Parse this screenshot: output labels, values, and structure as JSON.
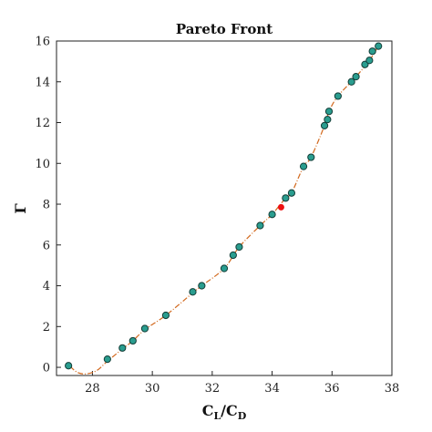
{
  "chart_data": {
    "type": "scatter",
    "title": "Pareto Front",
    "xlabel": {
      "main": "C",
      "sub1": "L",
      "sep": "/C",
      "sub2": "D"
    },
    "ylabel": "Γ",
    "xlim": [
      26.8,
      38
    ],
    "ylim": [
      -0.4,
      16
    ],
    "xticks": [
      28,
      30,
      32,
      34,
      36,
      38
    ],
    "yticks": [
      0,
      2,
      4,
      6,
      8,
      10,
      12,
      14,
      16
    ],
    "grid": false,
    "colors": {
      "point_fill": "#2a9d8f",
      "point_edge": "#123c36",
      "highlight": "#ee1111",
      "curve": "#d2691e"
    },
    "points": [
      {
        "x": 27.2,
        "y": 0.08
      },
      {
        "x": 28.5,
        "y": 0.4
      },
      {
        "x": 29.0,
        "y": 0.95
      },
      {
        "x": 29.35,
        "y": 1.3
      },
      {
        "x": 29.75,
        "y": 1.9
      },
      {
        "x": 30.45,
        "y": 2.55
      },
      {
        "x": 31.35,
        "y": 3.7
      },
      {
        "x": 31.65,
        "y": 4.0
      },
      {
        "x": 32.4,
        "y": 4.85
      },
      {
        "x": 32.7,
        "y": 5.5
      },
      {
        "x": 32.9,
        "y": 5.9
      },
      {
        "x": 33.6,
        "y": 6.95
      },
      {
        "x": 34.0,
        "y": 7.5
      },
      {
        "x": 34.45,
        "y": 8.3
      },
      {
        "x": 34.65,
        "y": 8.55
      },
      {
        "x": 35.05,
        "y": 9.85
      },
      {
        "x": 35.3,
        "y": 10.3
      },
      {
        "x": 35.75,
        "y": 11.85
      },
      {
        "x": 35.85,
        "y": 12.15
      },
      {
        "x": 35.9,
        "y": 12.55
      },
      {
        "x": 36.2,
        "y": 13.3
      },
      {
        "x": 36.65,
        "y": 14.0
      },
      {
        "x": 36.8,
        "y": 14.25
      },
      {
        "x": 37.1,
        "y": 14.85
      },
      {
        "x": 37.25,
        "y": 15.05
      },
      {
        "x": 37.35,
        "y": 15.5
      },
      {
        "x": 37.55,
        "y": 15.75
      }
    ],
    "highlight_point": {
      "x": 34.3,
      "y": 7.85
    },
    "fit_curve": [
      {
        "x": 27.25,
        "y": 0.05
      },
      {
        "x": 27.5,
        "y": -0.25
      },
      {
        "x": 27.8,
        "y": -0.32
      },
      {
        "x": 28.15,
        "y": -0.15
      },
      {
        "x": 28.5,
        "y": 0.3
      },
      {
        "x": 29.0,
        "y": 0.9
      },
      {
        "x": 29.35,
        "y": 1.3
      },
      {
        "x": 29.75,
        "y": 1.85
      },
      {
        "x": 30.45,
        "y": 2.55
      },
      {
        "x": 31.35,
        "y": 3.65
      },
      {
        "x": 31.65,
        "y": 4.0
      },
      {
        "x": 32.4,
        "y": 4.85
      },
      {
        "x": 32.9,
        "y": 5.9
      },
      {
        "x": 33.6,
        "y": 6.95
      },
      {
        "x": 34.0,
        "y": 7.5
      },
      {
        "x": 34.45,
        "y": 8.3
      },
      {
        "x": 34.65,
        "y": 8.55
      },
      {
        "x": 35.05,
        "y": 9.85
      },
      {
        "x": 35.3,
        "y": 10.3
      },
      {
        "x": 35.75,
        "y": 11.85
      },
      {
        "x": 35.9,
        "y": 12.55
      },
      {
        "x": 36.2,
        "y": 13.3
      },
      {
        "x": 36.8,
        "y": 14.25
      },
      {
        "x": 37.25,
        "y": 15.05
      },
      {
        "x": 37.55,
        "y": 15.75
      }
    ]
  }
}
